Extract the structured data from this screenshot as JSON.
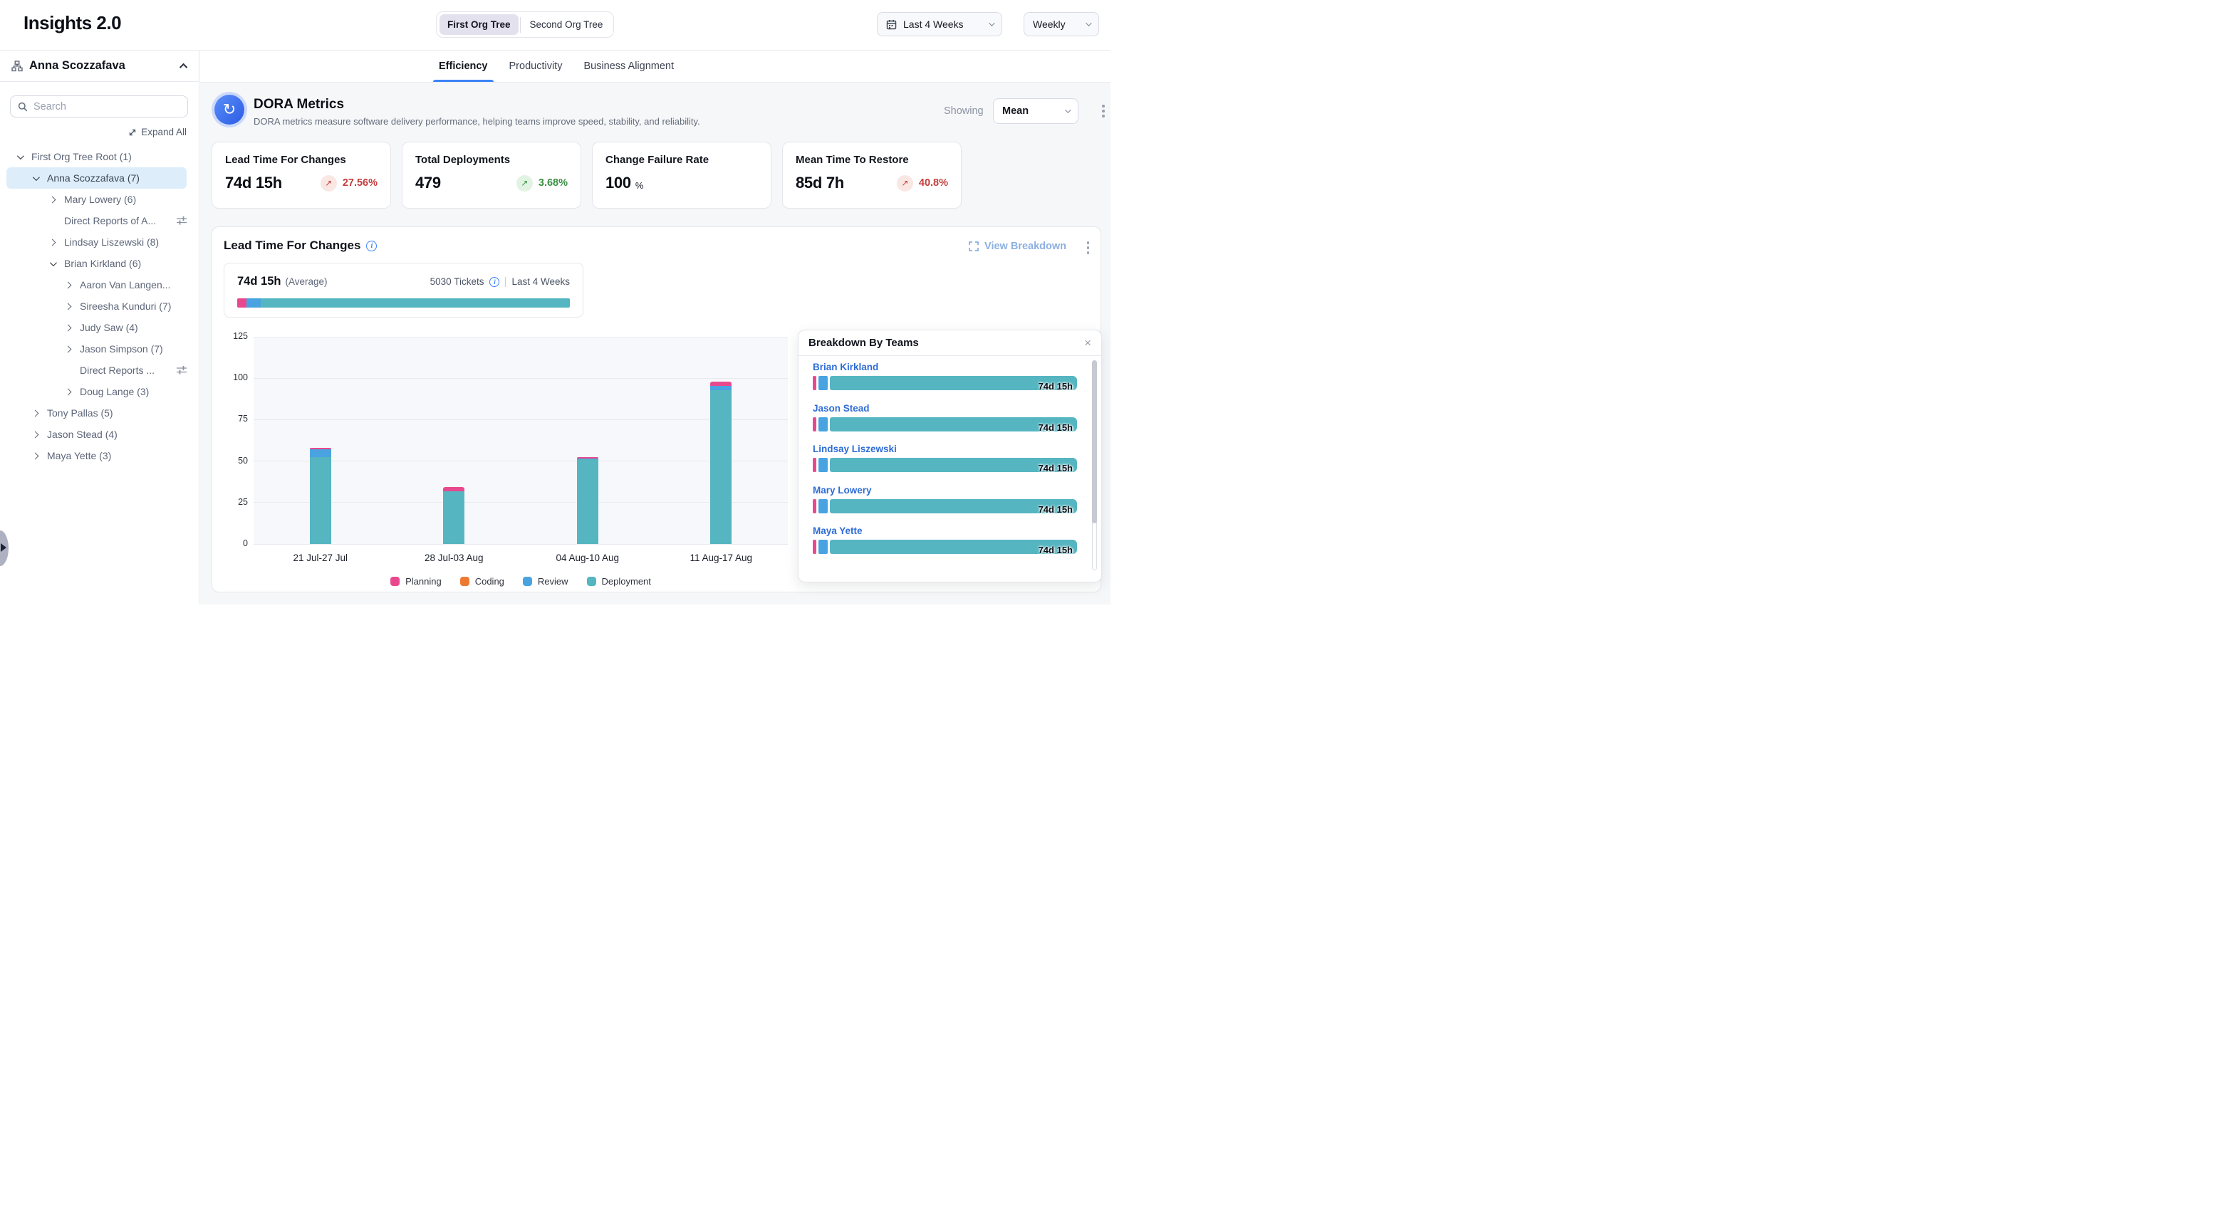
{
  "app": {
    "title": "Insights 2.0"
  },
  "topbar": {
    "org_toggle": [
      {
        "label": "First Org Tree",
        "active": true
      },
      {
        "label": "Second Org Tree",
        "active": false
      }
    ],
    "date_range": "Last 4 Weeks",
    "granularity": "Weekly"
  },
  "tabs": [
    {
      "label": "Efficiency",
      "active": true
    },
    {
      "label": "Productivity",
      "active": false
    },
    {
      "label": "Business Alignment",
      "active": false
    }
  ],
  "sidebar": {
    "header": "Anna Scozzafava",
    "search_placeholder": "Search",
    "expand_all": "Expand All",
    "tree": [
      {
        "label": "First Org Tree Root (1)",
        "level": 0,
        "state": "expanded",
        "selected": false
      },
      {
        "label": "Anna Scozzafava (7)",
        "level": 1,
        "state": "expanded",
        "selected": true
      },
      {
        "label": "Mary Lowery (6)",
        "level": 2,
        "state": "collapsed",
        "selected": false
      },
      {
        "label": "Direct Reports of A...",
        "level": 2,
        "state": "leaf",
        "selected": false,
        "filter_icon": true
      },
      {
        "label": "Lindsay Liszewski (8)",
        "level": 2,
        "state": "collapsed",
        "selected": false
      },
      {
        "label": "Brian Kirkland (6)",
        "level": 2,
        "state": "expanded",
        "selected": false
      },
      {
        "label": "Aaron Van Langen...",
        "level": 3,
        "state": "collapsed",
        "selected": false
      },
      {
        "label": "Sireesha Kunduri (7)",
        "level": 3,
        "state": "collapsed",
        "selected": false
      },
      {
        "label": "Judy Saw (4)",
        "level": 3,
        "state": "collapsed",
        "selected": false
      },
      {
        "label": "Jason Simpson (7)",
        "level": 3,
        "state": "collapsed",
        "selected": false
      },
      {
        "label": "Direct Reports ...",
        "level": 3,
        "state": "leaf",
        "selected": false,
        "filter_icon": true
      },
      {
        "label": "Doug Lange (3)",
        "level": 3,
        "state": "collapsed",
        "selected": false
      },
      {
        "label": "Tony Pallas (5)",
        "level": 1,
        "state": "collapsed",
        "selected": false
      },
      {
        "label": "Jason Stead (4)",
        "level": 1,
        "state": "collapsed",
        "selected": false
      },
      {
        "label": "Maya Yette (3)",
        "level": 1,
        "state": "collapsed",
        "selected": false
      }
    ]
  },
  "dora": {
    "title": "DORA Metrics",
    "description": "DORA metrics measure software delivery performance, helping teams improve speed, stability, and reliability.",
    "showing_label": "Showing",
    "showing_value": "Mean"
  },
  "cards": [
    {
      "title": "Lead Time For Changes",
      "value": "74d 15h",
      "delta": "27.56%",
      "trend": "up",
      "sentiment": "negative"
    },
    {
      "title": "Total Deployments",
      "value": "479",
      "delta": "3.68%",
      "trend": "up",
      "sentiment": "positive"
    },
    {
      "title": "Change Failure Rate",
      "value": "100",
      "unit": "%"
    },
    {
      "title": "Mean Time To Restore",
      "value": "85d 7h",
      "delta": "40.8%",
      "trend": "up",
      "sentiment": "negative"
    }
  ],
  "lead": {
    "title": "Lead Time For Changes",
    "view_breakdown": "View Breakdown",
    "average_value": "74d 15h",
    "average_label": "(Average)",
    "tickets": "5030 Tickets",
    "range": "Last 4 Weeks",
    "avg_bar": {
      "planning_pct": 2.8,
      "review_pct": 4.3
    }
  },
  "chart_data": {
    "type": "bar",
    "stacked": true,
    "title": "Lead Time For Changes",
    "categories": [
      "21 Jul-27 Jul",
      "28 Jul-03 Aug",
      "04 Aug-10 Aug",
      "11 Aug-17 Aug"
    ],
    "series": [
      {
        "name": "Planning",
        "color_key": "planning",
        "values": [
          1,
          2.5,
          1,
          2.5
        ]
      },
      {
        "name": "Coding",
        "color_key": "coding",
        "values": [
          0,
          0,
          0,
          0
        ]
      },
      {
        "name": "Review",
        "color_key": "review",
        "values": [
          4.5,
          0,
          0.5,
          2.5
        ]
      },
      {
        "name": "Deployment",
        "color_key": "deployment",
        "values": [
          52.5,
          32,
          51,
          93
        ]
      }
    ],
    "stack_order_bottom_up": [
      "Deployment",
      "Review",
      "Coding",
      "Planning"
    ],
    "ylim": [
      0,
      125
    ],
    "yticks": [
      0,
      25,
      50,
      75,
      100,
      125
    ],
    "grid": true,
    "legend_position": "bottom"
  },
  "breakdown": {
    "title": "Breakdown By Teams",
    "teams": [
      {
        "name": "Brian Kirkland",
        "value": "74d 15h"
      },
      {
        "name": "Jason Stead",
        "value": "74d 15h"
      },
      {
        "name": "Lindsay Liszewski",
        "value": "74d 15h"
      },
      {
        "name": "Mary Lowery",
        "value": "74d 15h"
      },
      {
        "name": "Maya Yette",
        "value": "74d 15h"
      }
    ]
  },
  "icons": {
    "trend_up": "↗",
    "close": "×",
    "dora_cycle": "↻"
  },
  "colors": {
    "tab_underline": "#3b82f6",
    "planning": "#e8498e",
    "coding": "#ed7a33",
    "review": "#4aa3e1",
    "deployment": "#55b6c1",
    "negative": "#c43d3d",
    "negative_bg": "#f9e7e4",
    "positive": "#3a9142",
    "positive_bg": "#e2f3e3",
    "link": "#2e6cd6",
    "view_breakdown": "#8cb0e2",
    "selected_row": "#ddeefa",
    "info": "#3b82f6"
  }
}
